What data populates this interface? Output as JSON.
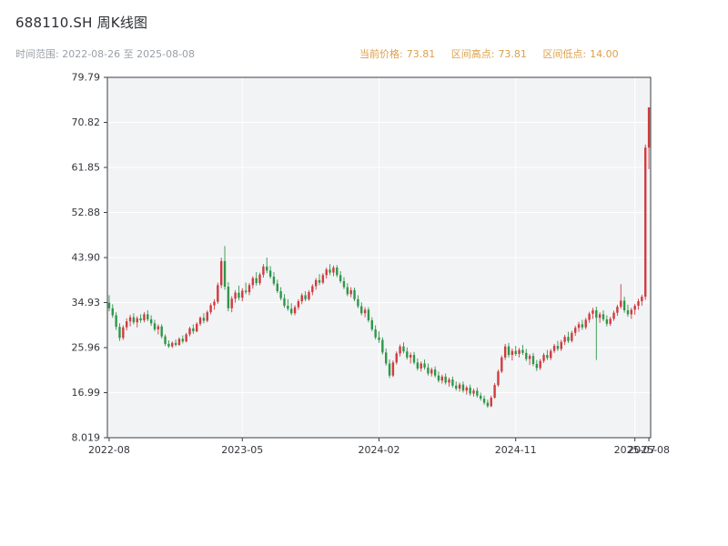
{
  "header": {
    "title": "688110.SH 周K线图",
    "range_text": "时间范围: 2022-08-26 至 2025-08-08",
    "info": {
      "current_label": "当前价格:",
      "current_value": "73.81",
      "high_label": "区间高点:",
      "high_value": "73.81",
      "low_label": "区间低点:",
      "low_value": "14.00"
    }
  },
  "chart_data": {
    "type": "candlestick",
    "symbol": "688110.SH",
    "period": "weekly",
    "title": "688110.SH 周K线图",
    "date_start": "2022-08-26",
    "date_end": "2025-08-08",
    "current_price": 73.81,
    "range_high": 73.81,
    "range_low": 14.0,
    "ylim": [
      8.019,
      79.79
    ],
    "y_ticks": [
      {
        "value": 79.79,
        "label": "79.79"
      },
      {
        "value": 70.82,
        "label": "70.82"
      },
      {
        "value": 61.85,
        "label": "61.85"
      },
      {
        "value": 52.88,
        "label": "52.88"
      },
      {
        "value": 43.9,
        "label": "43.90"
      },
      {
        "value": 34.93,
        "label": "34.93"
      },
      {
        "value": 25.96,
        "label": "25.96"
      },
      {
        "value": 16.99,
        "label": "16.99"
      },
      {
        "value": 8.019,
        "label": "8.019"
      }
    ],
    "x_ticks": [
      {
        "index": 0,
        "label": "2022-08"
      },
      {
        "index": 38,
        "label": "2023-05"
      },
      {
        "index": 77,
        "label": "2024-02"
      },
      {
        "index": 116,
        "label": "2024-11"
      },
      {
        "index": 150,
        "label": "2025-07"
      },
      {
        "index": 154,
        "label": "2025-08"
      }
    ],
    "up_color": "#cf3b3f",
    "down_color": "#2f9649",
    "plot_bg": "#f2f3f5",
    "grid_color": "#ffffff",
    "axis_color": "#3a3f44",
    "tick_label_color": "#33363b",
    "candles": [
      [
        34.9,
        36.4,
        33.2,
        33.8
      ],
      [
        33.8,
        34.6,
        31.9,
        32.4
      ],
      [
        32.4,
        33.0,
        29.5,
        30.1
      ],
      [
        30.1,
        30.8,
        27.3,
        27.9
      ],
      [
        27.9,
        30.4,
        27.5,
        30.0
      ],
      [
        30.0,
        31.8,
        29.4,
        31.2
      ],
      [
        31.2,
        32.5,
        30.2,
        32.0
      ],
      [
        32.0,
        32.8,
        30.6,
        31.0
      ],
      [
        31.0,
        32.2,
        30.0,
        31.8
      ],
      [
        31.8,
        32.6,
        30.9,
        31.4
      ],
      [
        31.4,
        33.0,
        31.0,
        32.6
      ],
      [
        32.6,
        33.4,
        31.2,
        31.6
      ],
      [
        31.6,
        32.4,
        30.3,
        30.8
      ],
      [
        30.8,
        31.5,
        29.2,
        29.6
      ],
      [
        29.6,
        30.6,
        28.6,
        30.2
      ],
      [
        30.2,
        30.6,
        27.8,
        28.2
      ],
      [
        28.2,
        28.6,
        26.3,
        26.7
      ],
      [
        26.7,
        27.4,
        25.9,
        26.2
      ],
      [
        26.2,
        27.2,
        25.9,
        26.9
      ],
      [
        26.9,
        27.6,
        26.2,
        26.5
      ],
      [
        26.5,
        28.0,
        26.3,
        27.7
      ],
      [
        27.7,
        28.4,
        26.8,
        27.2
      ],
      [
        27.2,
        28.9,
        27.0,
        28.6
      ],
      [
        28.6,
        30.1,
        28.2,
        29.8
      ],
      [
        29.8,
        30.6,
        28.7,
        29.2
      ],
      [
        29.2,
        31.0,
        29.0,
        30.7
      ],
      [
        30.7,
        32.2,
        30.3,
        31.9
      ],
      [
        31.9,
        32.8,
        30.8,
        31.3
      ],
      [
        31.3,
        33.4,
        31.0,
        33.0
      ],
      [
        33.0,
        34.8,
        32.6,
        34.4
      ],
      [
        34.4,
        35.6,
        33.5,
        35.1
      ],
      [
        35.1,
        38.9,
        34.7,
        38.4
      ],
      [
        38.4,
        43.9,
        37.8,
        43.2
      ],
      [
        43.2,
        46.2,
        37.5,
        38.1
      ],
      [
        38.1,
        39.0,
        33.2,
        33.8
      ],
      [
        33.8,
        36.2,
        33.0,
        35.7
      ],
      [
        35.7,
        37.4,
        34.9,
        36.9
      ],
      [
        36.9,
        38.3,
        35.4,
        35.9
      ],
      [
        35.9,
        37.8,
        35.2,
        37.3
      ],
      [
        37.3,
        38.9,
        36.6,
        37.0
      ],
      [
        37.0,
        38.8,
        36.4,
        38.4
      ],
      [
        38.4,
        40.2,
        37.7,
        39.8
      ],
      [
        39.8,
        41.0,
        38.3,
        38.8
      ],
      [
        38.8,
        40.9,
        38.4,
        40.5
      ],
      [
        40.5,
        42.6,
        39.9,
        42.1
      ],
      [
        42.1,
        43.9,
        40.8,
        41.3
      ],
      [
        41.3,
        42.2,
        39.7,
        40.1
      ],
      [
        40.1,
        41.0,
        38.3,
        38.7
      ],
      [
        38.7,
        39.5,
        36.8,
        37.2
      ],
      [
        37.2,
        38.0,
        35.4,
        35.8
      ],
      [
        35.8,
        36.6,
        33.9,
        34.3
      ],
      [
        34.3,
        35.6,
        33.3,
        33.7
      ],
      [
        33.7,
        34.8,
        32.4,
        32.8
      ],
      [
        32.8,
        34.4,
        32.4,
        34.0
      ],
      [
        34.0,
        35.6,
        33.5,
        35.2
      ],
      [
        35.2,
        36.8,
        34.6,
        36.4
      ],
      [
        36.4,
        37.2,
        35.2,
        35.6
      ],
      [
        35.6,
        37.4,
        35.3,
        37.0
      ],
      [
        37.0,
        38.6,
        36.4,
        38.2
      ],
      [
        38.2,
        39.8,
        37.5,
        39.4
      ],
      [
        39.4,
        40.6,
        38.4,
        38.9
      ],
      [
        38.9,
        40.8,
        38.6,
        40.4
      ],
      [
        40.4,
        41.9,
        39.7,
        41.5
      ],
      [
        41.5,
        42.6,
        40.4,
        40.9
      ],
      [
        40.9,
        42.3,
        40.2,
        41.9
      ],
      [
        41.9,
        42.4,
        40.0,
        40.4
      ],
      [
        40.4,
        41.2,
        38.8,
        39.2
      ],
      [
        39.2,
        40.0,
        37.6,
        38.0
      ],
      [
        38.0,
        38.8,
        36.2,
        36.6
      ],
      [
        36.6,
        38.0,
        36.0,
        37.4
      ],
      [
        37.4,
        37.9,
        35.2,
        35.6
      ],
      [
        35.6,
        36.4,
        33.8,
        34.2
      ],
      [
        34.2,
        35.0,
        32.4,
        32.8
      ],
      [
        32.8,
        34.0,
        32.0,
        33.5
      ],
      [
        33.5,
        34.0,
        31.0,
        31.4
      ],
      [
        31.4,
        32.0,
        29.2,
        29.6
      ],
      [
        29.6,
        30.4,
        27.6,
        28.0
      ],
      [
        28.0,
        29.2,
        26.9,
        27.5
      ],
      [
        27.5,
        28.0,
        24.6,
        25.0
      ],
      [
        25.0,
        25.8,
        22.4,
        22.8
      ],
      [
        22.8,
        23.6,
        19.9,
        20.4
      ],
      [
        20.4,
        23.4,
        20.1,
        23.0
      ],
      [
        23.0,
        25.2,
        22.6,
        24.8
      ],
      [
        24.8,
        26.6,
        24.2,
        26.2
      ],
      [
        26.2,
        27.0,
        24.8,
        25.2
      ],
      [
        25.2,
        26.0,
        23.6,
        24.0
      ],
      [
        24.0,
        25.0,
        22.8,
        24.5
      ],
      [
        24.5,
        25.1,
        22.6,
        23.0
      ],
      [
        23.0,
        23.8,
        21.4,
        21.8
      ],
      [
        21.8,
        23.2,
        21.2,
        22.8
      ],
      [
        22.8,
        23.6,
        21.6,
        22.0
      ],
      [
        22.0,
        22.8,
        20.4,
        20.8
      ],
      [
        20.8,
        22.0,
        20.2,
        21.6
      ],
      [
        21.6,
        22.2,
        20.0,
        20.4
      ],
      [
        20.4,
        21.2,
        19.0,
        19.4
      ],
      [
        19.4,
        20.6,
        18.8,
        20.2
      ],
      [
        20.2,
        20.8,
        18.6,
        19.0
      ],
      [
        19.0,
        20.0,
        18.2,
        19.6
      ],
      [
        19.6,
        20.2,
        18.0,
        18.4
      ],
      [
        18.4,
        19.2,
        17.4,
        17.8
      ],
      [
        17.8,
        19.0,
        17.2,
        18.6
      ],
      [
        18.6,
        19.2,
        17.0,
        17.4
      ],
      [
        17.4,
        18.4,
        16.6,
        18.0
      ],
      [
        18.0,
        18.6,
        16.4,
        16.8
      ],
      [
        16.8,
        17.8,
        16.2,
        17.4
      ],
      [
        17.4,
        18.0,
        16.0,
        16.4
      ],
      [
        16.4,
        17.0,
        15.4,
        15.8
      ],
      [
        15.8,
        16.4,
        14.6,
        15.0
      ],
      [
        15.0,
        15.6,
        14.0,
        14.3
      ],
      [
        14.3,
        16.4,
        14.1,
        16.0
      ],
      [
        16.0,
        18.9,
        15.8,
        18.5
      ],
      [
        18.5,
        21.6,
        18.2,
        21.2
      ],
      [
        21.2,
        24.4,
        20.9,
        24.0
      ],
      [
        24.0,
        26.7,
        23.5,
        26.2
      ],
      [
        26.2,
        26.9,
        24.0,
        24.5
      ],
      [
        24.5,
        25.8,
        23.4,
        25.3
      ],
      [
        25.3,
        26.3,
        24.3,
        24.7
      ],
      [
        24.7,
        25.9,
        24.0,
        25.5
      ],
      [
        25.5,
        26.5,
        24.5,
        24.9
      ],
      [
        24.9,
        25.7,
        23.3,
        23.7
      ],
      [
        23.7,
        24.7,
        22.5,
        24.3
      ],
      [
        24.3,
        24.9,
        22.3,
        22.7
      ],
      [
        22.7,
        23.5,
        21.3,
        21.9
      ],
      [
        21.9,
        23.7,
        21.5,
        23.3
      ],
      [
        23.3,
        24.9,
        22.9,
        24.5
      ],
      [
        24.5,
        25.5,
        23.5,
        23.9
      ],
      [
        23.9,
        25.7,
        23.5,
        25.3
      ],
      [
        25.3,
        26.7,
        24.9,
        26.3
      ],
      [
        26.3,
        27.3,
        25.3,
        25.7
      ],
      [
        25.7,
        27.5,
        25.3,
        27.1
      ],
      [
        27.1,
        28.5,
        26.5,
        28.1
      ],
      [
        28.1,
        29.1,
        26.9,
        27.3
      ],
      [
        27.3,
        29.3,
        27.0,
        28.9
      ],
      [
        28.9,
        30.3,
        28.3,
        29.9
      ],
      [
        29.9,
        31.1,
        29.1,
        30.6
      ],
      [
        30.6,
        31.5,
        29.5,
        30.0
      ],
      [
        30.0,
        31.9,
        29.6,
        31.5
      ],
      [
        31.5,
        33.1,
        30.9,
        32.7
      ],
      [
        32.7,
        33.9,
        31.7,
        33.4
      ],
      [
        33.4,
        34.1,
        23.5,
        31.9
      ],
      [
        31.9,
        33.0,
        30.9,
        32.6
      ],
      [
        32.6,
        33.4,
        31.2,
        31.6
      ],
      [
        31.6,
        32.4,
        30.2,
        30.7
      ],
      [
        30.7,
        32.1,
        30.3,
        31.7
      ],
      [
        31.7,
        33.3,
        31.3,
        32.9
      ],
      [
        32.9,
        34.5,
        32.3,
        34.1
      ],
      [
        34.1,
        38.6,
        33.7,
        35.3
      ],
      [
        35.3,
        36.1,
        32.9,
        33.4
      ],
      [
        33.4,
        34.5,
        32.1,
        32.6
      ],
      [
        32.6,
        33.9,
        31.7,
        33.5
      ],
      [
        33.5,
        34.7,
        32.5,
        34.3
      ],
      [
        34.3,
        35.7,
        33.5,
        35.2
      ],
      [
        35.2,
        36.5,
        34.3,
        36.1
      ],
      [
        36.1,
        66.4,
        35.5,
        65.8
      ],
      [
        65.8,
        73.81,
        61.5,
        73.81
      ]
    ]
  }
}
